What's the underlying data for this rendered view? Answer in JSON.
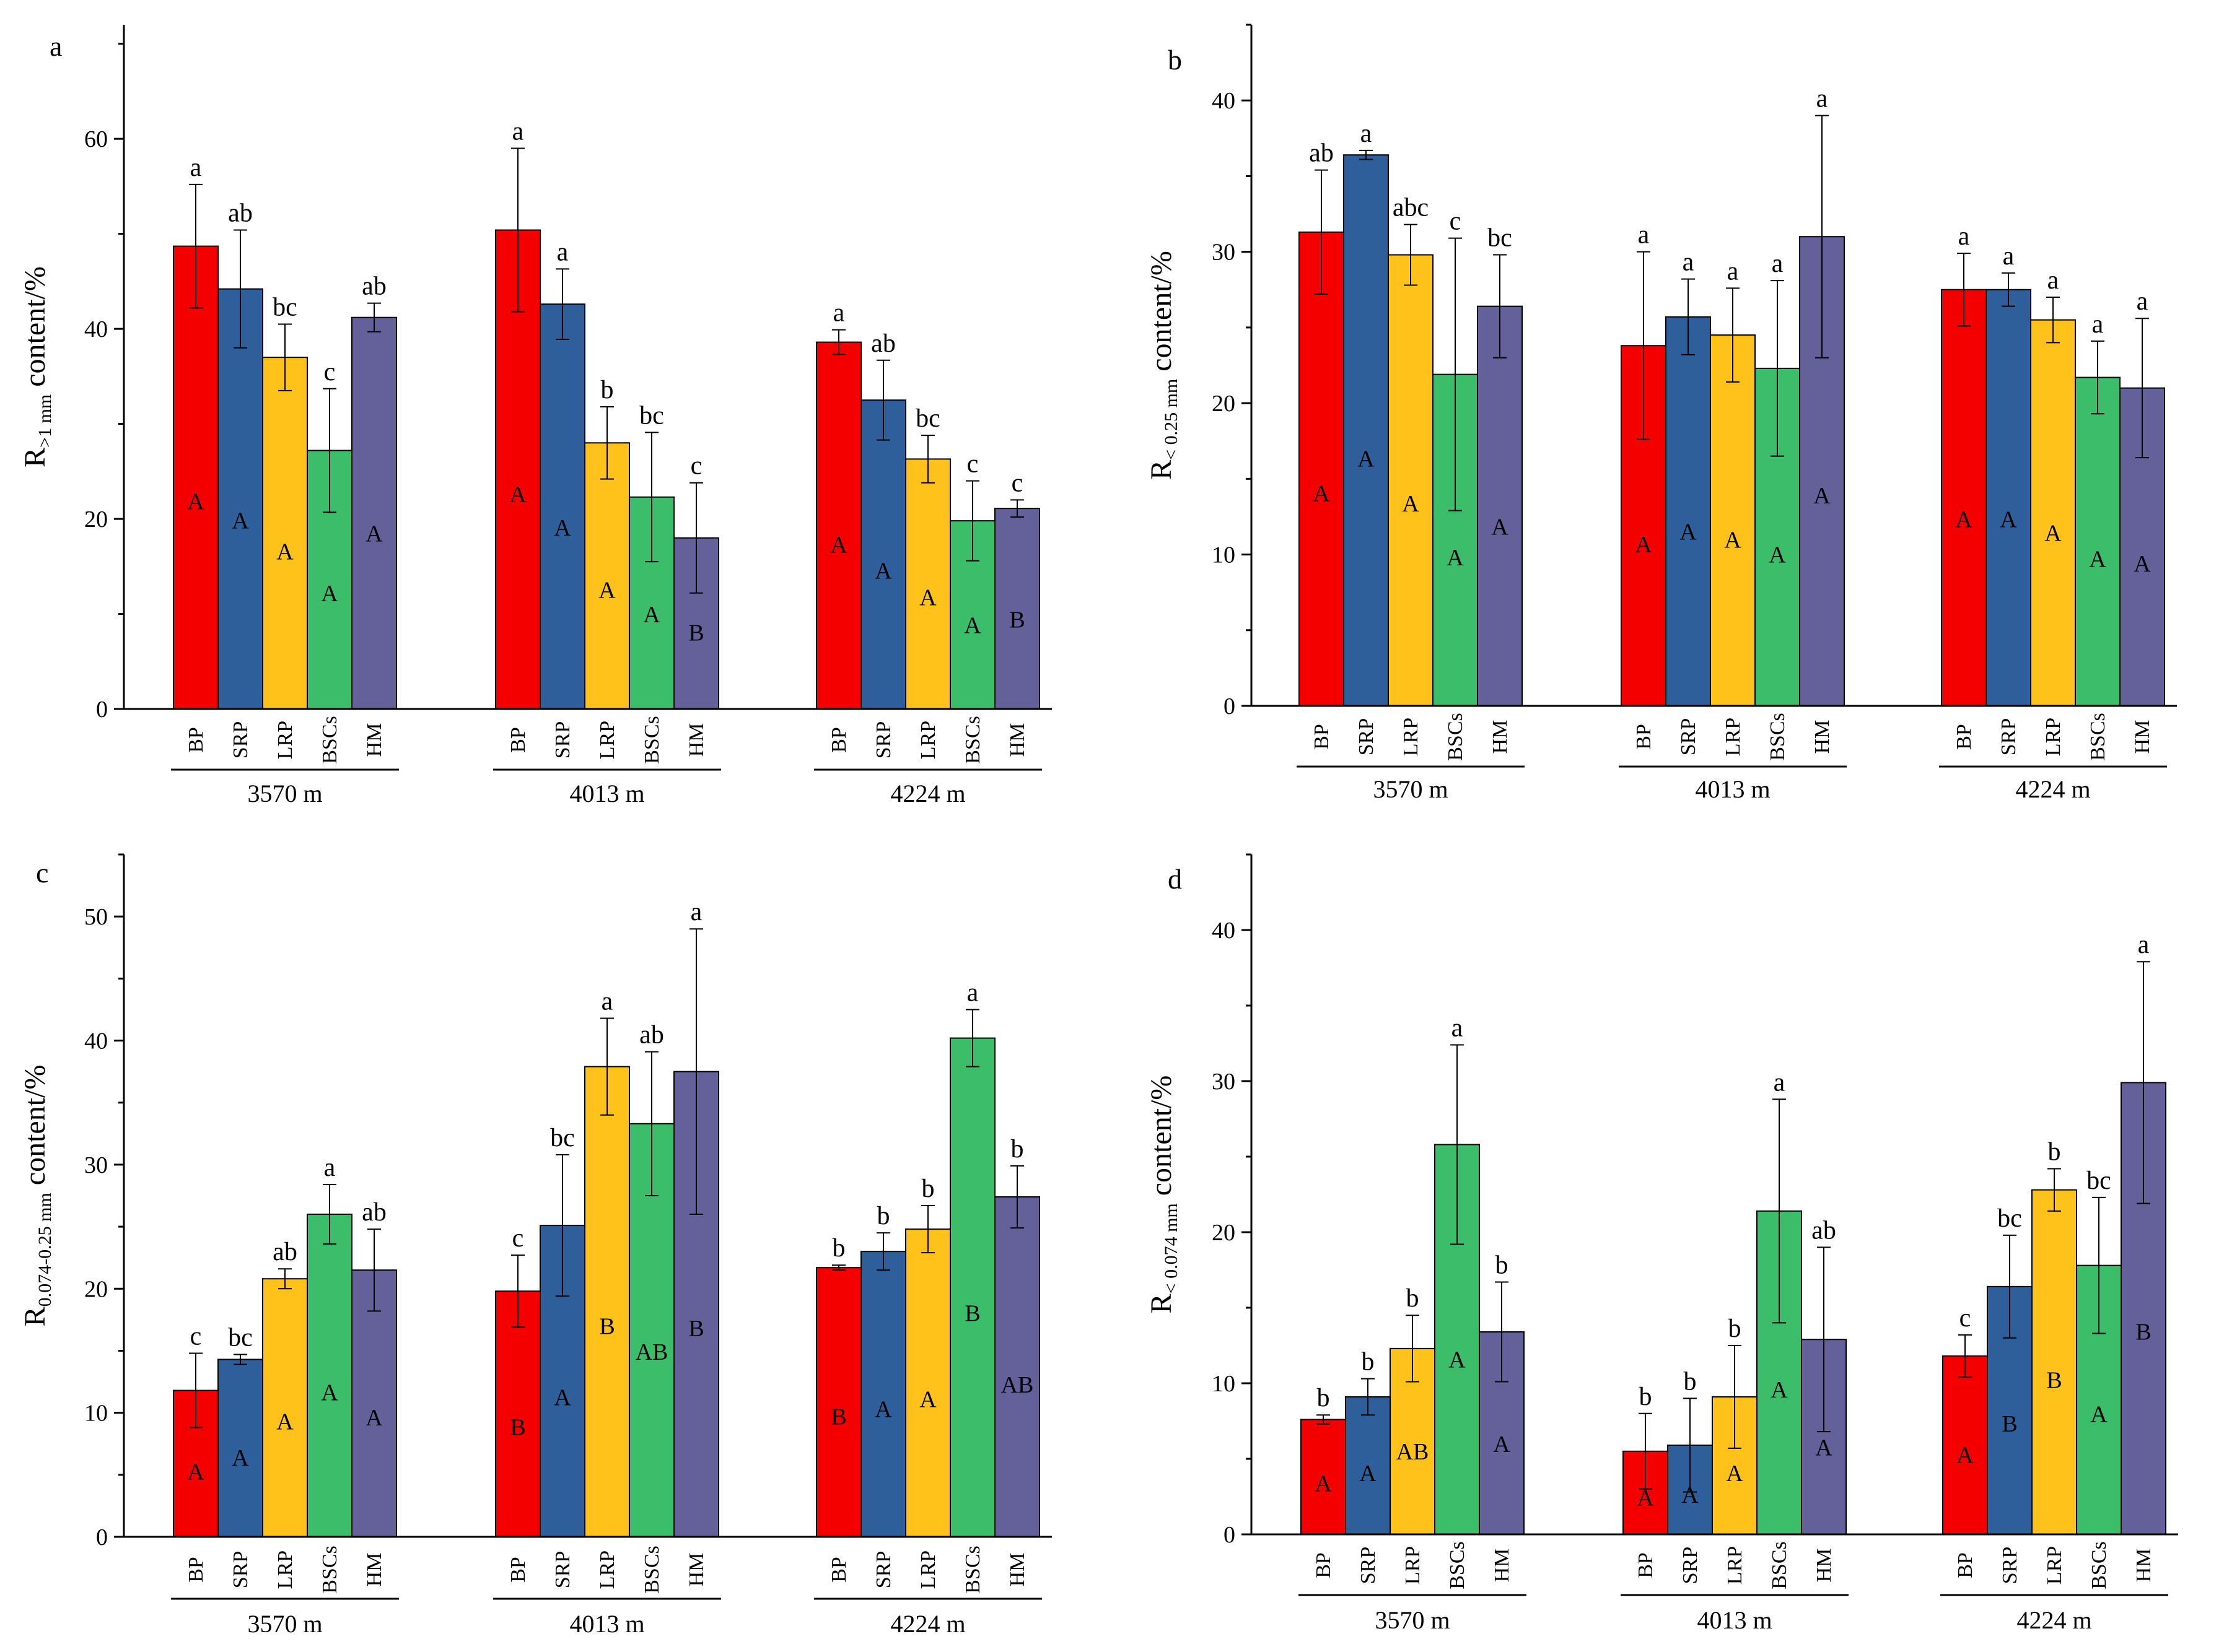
{
  "figure": {
    "groups": [
      "3570 m",
      "4013 m",
      "4224 m"
    ],
    "categories": [
      "BP",
      "SRP",
      "LRP",
      "BSCs",
      "HM"
    ],
    "colors": {
      "BP": "#f40000",
      "SRP": "#2f5f9a",
      "LRP": "#ffc21a",
      "BSCs": "#3cbd6a",
      "HM": "#63609a",
      "axis": "#000000"
    }
  },
  "chart_data": [
    {
      "panel": "a",
      "type": "bar",
      "ylabel_main": "R",
      "ylabel_sub": ">1 mm",
      "ylabel_tail": " content/%",
      "ylim": [
        0,
        72
      ],
      "yticks": [
        0,
        20,
        40,
        60
      ],
      "series": [
        {
          "group": "3570 m",
          "values": [
            48.7,
            44.2,
            37.0,
            27.2,
            41.2
          ],
          "errors": [
            6.5,
            6.2,
            3.5,
            6.5,
            1.5
          ],
          "sig": [
            "a",
            "ab",
            "bc",
            "c",
            "ab"
          ],
          "inner": [
            "A",
            "A",
            "A",
            "A",
            "A"
          ]
        },
        {
          "group": "4013 m",
          "values": [
            50.4,
            42.6,
            28.0,
            22.3,
            18.0
          ],
          "errors": [
            8.6,
            3.7,
            3.8,
            6.8,
            5.8
          ],
          "sig": [
            "a",
            "a",
            "b",
            "bc",
            "c"
          ],
          "inner": [
            "A",
            "A",
            "A",
            "A",
            "B"
          ]
        },
        {
          "group": "4224 m",
          "values": [
            38.6,
            32.5,
            26.3,
            19.8,
            21.1
          ],
          "errors": [
            1.3,
            4.2,
            2.5,
            4.2,
            0.9
          ],
          "sig": [
            "a",
            "ab",
            "bc",
            "c",
            "c"
          ],
          "inner": [
            "A",
            "A",
            "A",
            "A",
            "B"
          ]
        }
      ]
    },
    {
      "panel": "b",
      "type": "bar",
      "ylabel_main": "R",
      "ylabel_sub": "< 0.25 mm",
      "ylabel_tail": " content/%",
      "ylim": [
        0,
        45
      ],
      "yticks": [
        0,
        10,
        20,
        30,
        40
      ],
      "series": [
        {
          "group": "3570 m",
          "values": [
            31.3,
            36.4,
            29.8,
            21.9,
            26.4
          ],
          "errors": [
            4.1,
            0.3,
            2.0,
            9.0,
            3.4
          ],
          "sig": [
            "ab",
            "a",
            "abc",
            "c",
            "bc"
          ],
          "inner": [
            "A",
            "A",
            "A",
            "A",
            "A"
          ]
        },
        {
          "group": "4013 m",
          "values": [
            23.8,
            25.7,
            24.5,
            22.3,
            31.0
          ],
          "errors": [
            6.2,
            2.5,
            3.1,
            5.8,
            8.0
          ],
          "sig": [
            "a",
            "a",
            "a",
            "a",
            "a"
          ],
          "inner": [
            "A",
            "A",
            "A",
            "A",
            "A"
          ]
        },
        {
          "group": "4224 m",
          "values": [
            27.5,
            27.5,
            25.5,
            21.7,
            21.0
          ],
          "errors": [
            2.4,
            1.1,
            1.5,
            2.4,
            4.6
          ],
          "sig": [
            "a",
            "a",
            "a",
            "a",
            "a"
          ],
          "inner": [
            "A",
            "A",
            "A",
            "A",
            "A"
          ]
        }
      ]
    },
    {
      "panel": "c",
      "type": "bar",
      "ylabel_main": "R",
      "ylabel_sub": "0.074-0.25 mm",
      "ylabel_tail": " content/%",
      "ylim": [
        0,
        55
      ],
      "yticks": [
        0,
        10,
        20,
        30,
        40,
        50
      ],
      "series": [
        {
          "group": "3570 m",
          "values": [
            11.8,
            14.3,
            20.8,
            26.0,
            21.5
          ],
          "errors": [
            3.0,
            0.4,
            0.8,
            2.4,
            3.3
          ],
          "sig": [
            "c",
            "bc",
            "ab",
            "a",
            "ab"
          ],
          "inner": [
            "A",
            "A",
            "A",
            "A",
            "A"
          ]
        },
        {
          "group": "4013 m",
          "values": [
            19.8,
            25.1,
            37.9,
            33.3,
            37.5
          ],
          "errors": [
            2.9,
            5.7,
            3.9,
            5.8,
            11.5
          ],
          "sig": [
            "c",
            "bc",
            "a",
            "ab",
            "a"
          ],
          "inner": [
            "B",
            "A",
            "B",
            "AB",
            "B"
          ]
        },
        {
          "group": "4224 m",
          "values": [
            21.7,
            23.0,
            24.8,
            40.2,
            27.4
          ],
          "errors": [
            0.2,
            1.5,
            1.9,
            2.3,
            2.5
          ],
          "sig": [
            "b",
            "b",
            "b",
            "a",
            "b"
          ],
          "inner": [
            "B",
            "A",
            "A",
            "B",
            "AB"
          ]
        }
      ]
    },
    {
      "panel": "d",
      "type": "bar",
      "ylabel_main": "R",
      "ylabel_sub": "< 0.074 mm",
      "ylabel_tail": " content/%",
      "ylim": [
        0,
        45
      ],
      "yticks": [
        0,
        10,
        20,
        30,
        40
      ],
      "series": [
        {
          "group": "3570 m",
          "values": [
            7.6,
            9.1,
            12.3,
            25.8,
            13.4
          ],
          "errors": [
            0.3,
            1.2,
            2.2,
            6.6,
            3.3
          ],
          "sig": [
            "b",
            "b",
            "b",
            "a",
            "b"
          ],
          "inner": [
            "A",
            "A",
            "AB",
            "A",
            "A"
          ]
        },
        {
          "group": "4013 m",
          "values": [
            5.5,
            5.9,
            9.1,
            21.4,
            12.9
          ],
          "errors": [
            2.5,
            3.1,
            3.4,
            7.4,
            6.1
          ],
          "sig": [
            "b",
            "b",
            "b",
            "a",
            "ab"
          ],
          "inner": [
            "A",
            "A",
            "A",
            "A",
            "A"
          ]
        },
        {
          "group": "4224 m",
          "values": [
            11.8,
            16.4,
            22.8,
            17.8,
            29.9
          ],
          "errors": [
            1.4,
            3.4,
            1.4,
            4.5,
            8.0
          ],
          "sig": [
            "c",
            "bc",
            "b",
            "bc",
            "a"
          ],
          "inner": [
            "A",
            "B",
            "B",
            "A",
            "B"
          ]
        }
      ]
    }
  ]
}
